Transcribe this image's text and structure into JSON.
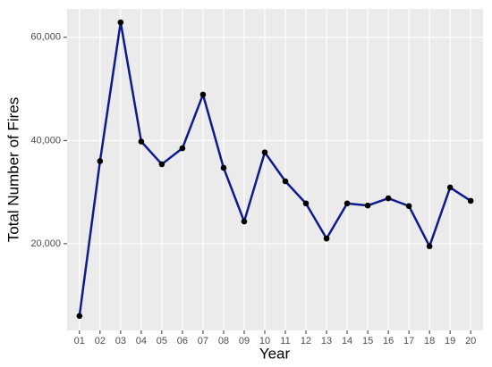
{
  "chart_data": {
    "type": "line",
    "x_label": "Year",
    "y_label": "Total Number of Fires",
    "categories": [
      "01",
      "02",
      "03",
      "04",
      "05",
      "06",
      "07",
      "08",
      "09",
      "10",
      "11",
      "12",
      "13",
      "14",
      "15",
      "16",
      "17",
      "18",
      "19",
      "20"
    ],
    "values": [
      6000,
      36000,
      62900,
      39800,
      35400,
      38500,
      48900,
      34700,
      24300,
      37700,
      32100,
      27800,
      21000,
      27800,
      27400,
      28800,
      27300,
      19500,
      30900,
      28300
    ],
    "color": "#0f1a8c",
    "point_color": "#000000",
    "ylim": [
      3200,
      65500
    ],
    "yticks": [
      {
        "value": 20000,
        "label": "20,000"
      },
      {
        "value": 40000,
        "label": "40,000"
      },
      {
        "value": 60000,
        "label": "60,000"
      }
    ],
    "grid": true
  }
}
